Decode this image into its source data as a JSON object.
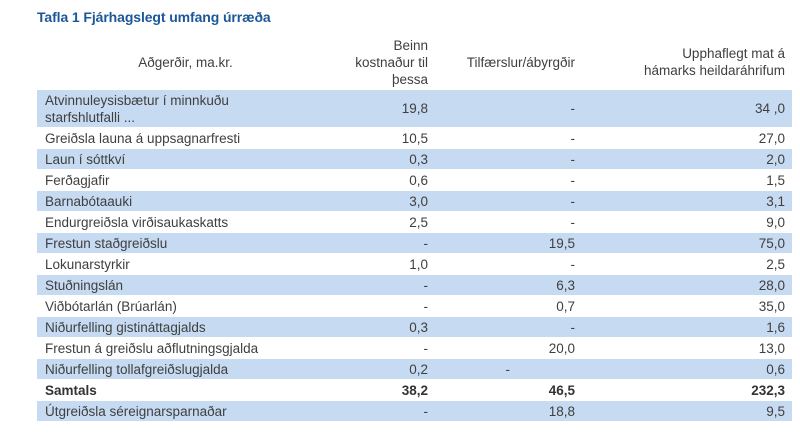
{
  "title": "Tafla 1 Fjárhagslegt umfang úrræða",
  "colors": {
    "title_accent": "#1c5799",
    "row_stripe": "#c6daf1",
    "text": "#3f3f3f"
  },
  "table": {
    "columns": [
      {
        "label": "Aðgerðir, ma.kr."
      },
      {
        "label": "Beinn\nkostnaður til\nþessa"
      },
      {
        "label": "Tilfærslur/ábyrgðir"
      },
      {
        "label": "Upphaflegt mat á\nhámarks heildaráhrifum"
      }
    ],
    "rows": [
      {
        "label": "Atvinnuleysisbætur í minnkuðu\nstarfshlutfalli ...",
        "c1": "19,8",
        "c2": "-",
        "c3": "34 ,0",
        "shaded": true,
        "bold": false,
        "c2_shift": false
      },
      {
        "label": "Greiðsla launa á uppsagnarfresti",
        "c1": "10,5",
        "c2": "-",
        "c3": "27,0",
        "shaded": false,
        "bold": false,
        "c2_shift": false
      },
      {
        "label": "Laun í sóttkví",
        "c1": "0,3",
        "c2": "-",
        "c3": "2,0",
        "shaded": true,
        "bold": false,
        "c2_shift": false
      },
      {
        "label": "Ferðagjafir",
        "c1": "0,6",
        "c2": "-",
        "c3": "1,5",
        "shaded": false,
        "bold": false,
        "c2_shift": false
      },
      {
        "label": "Barnabótaauki",
        "c1": "3,0",
        "c2": "-",
        "c3": "3,1",
        "shaded": true,
        "bold": false,
        "c2_shift": false
      },
      {
        "label": "Endurgreiðsla virðisaukaskatts",
        "c1": "2,5",
        "c2": "-",
        "c3": "9,0",
        "shaded": false,
        "bold": false,
        "c2_shift": false
      },
      {
        "label": "Frestun staðgreiðslu",
        "c1": "-",
        "c2": "19,5",
        "c3": "75,0",
        "shaded": true,
        "bold": false,
        "c2_shift": false
      },
      {
        "label": "Lokunarstyrkir",
        "c1": "1,0",
        "c2": "-",
        "c3": "2,5",
        "shaded": false,
        "bold": false,
        "c2_shift": false
      },
      {
        "label": "Stuðningslán",
        "c1": "-",
        "c2": "6,3",
        "c3": "28,0",
        "shaded": true,
        "bold": false,
        "c2_shift": false
      },
      {
        "label": "Viðbótarlán (Brúarlán)",
        "c1": "-",
        "c2": "0,7",
        "c3": "35,0",
        "shaded": false,
        "bold": false,
        "c2_shift": false
      },
      {
        "label": "Niðurfelling gistináttagjalds",
        "c1": "0,3",
        "c2": "-",
        "c3": "1,6",
        "shaded": true,
        "bold": false,
        "c2_shift": false
      },
      {
        "label": "Frestun á greiðslu aðflutningsgjalda",
        "c1": "-",
        "c2": "20,0",
        "c3": "13,0",
        "shaded": false,
        "bold": false,
        "c2_shift": false
      },
      {
        "label": "Niðurfelling tollafgreiðslugjalda",
        "c1": "0,2",
        "c2": "-",
        "c3": "0,6",
        "shaded": true,
        "bold": false,
        "c2_shift": true
      },
      {
        "label": "Samtals",
        "c1": "38,2",
        "c2": "46,5",
        "c3": "232,3",
        "shaded": false,
        "bold": true,
        "c2_shift": false
      },
      {
        "label": "Útgreiðsla séreignarsparnaðar",
        "c1": "-",
        "c2": "18,8",
        "c3": "9,5",
        "shaded": true,
        "bold": false,
        "c2_shift": false
      }
    ]
  }
}
